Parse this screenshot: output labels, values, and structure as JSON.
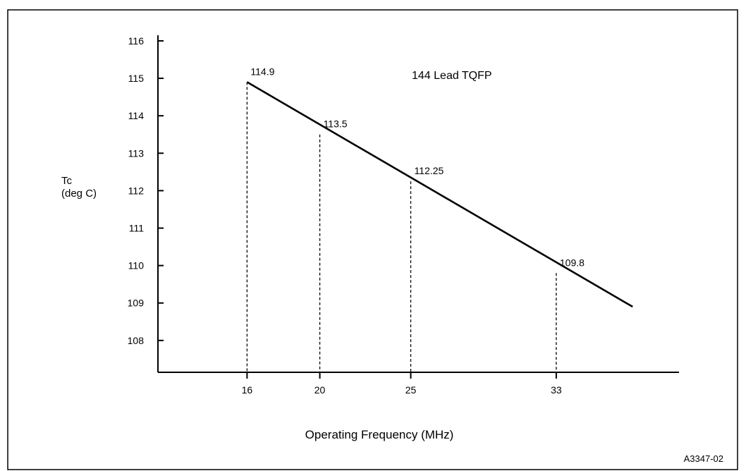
{
  "figure_id": "A3347-02",
  "chart_data": {
    "type": "line",
    "title": "144 Lead TQFP",
    "xlabel": "Operating Frequency (MHz)",
    "ylabel_line1": "Tc",
    "ylabel_line2": "(deg C)",
    "xlim": [
      11.1,
      39.75
    ],
    "ylim": [
      107.15,
      116.15
    ],
    "x_ticks": [
      16,
      20,
      25,
      33
    ],
    "y_ticks": [
      108,
      109,
      110,
      111,
      112,
      113,
      114,
      115,
      116
    ],
    "series": [
      {
        "x": [
          16,
          37.2
        ],
        "y": [
          114.9,
          108.9
        ]
      }
    ],
    "labeled_points": [
      {
        "x": 16,
        "y": 114.9,
        "label": "114.9"
      },
      {
        "x": 20,
        "y": 113.5,
        "label": "113.5"
      },
      {
        "x": 25,
        "y": 112.25,
        "label": "112.25"
      },
      {
        "x": 33,
        "y": 109.8,
        "label": "109.8"
      }
    ],
    "grid": false,
    "legend": "none"
  }
}
